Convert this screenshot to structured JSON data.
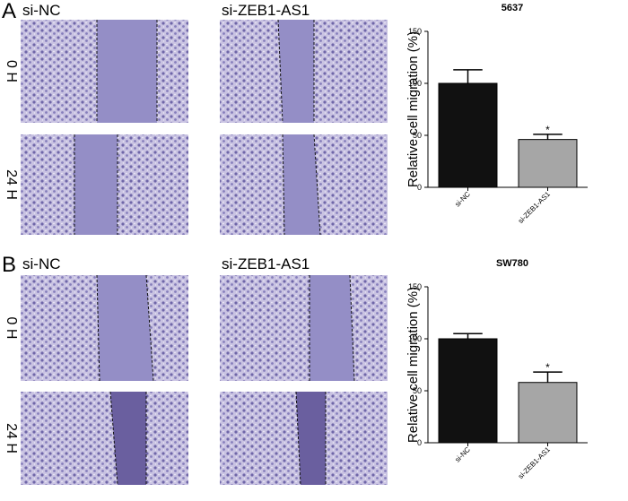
{
  "panels": [
    {
      "label": "A",
      "columns": [
        "si-NC",
        "si-ZEB1-AS1"
      ],
      "rows": [
        "0 H",
        "24 H"
      ]
    },
    {
      "label": "B",
      "columns": [
        "si-NC",
        "si-ZEB1-AS1"
      ],
      "rows": [
        "0 H",
        "24 H"
      ]
    }
  ],
  "chart_data": [
    {
      "type": "bar",
      "title": "5637",
      "ylabel": "Relative cell migration (%)",
      "categories": [
        "si-NC",
        "si-ZEB1-AS1"
      ],
      "values": [
        100,
        46
      ],
      "errors": [
        13,
        5
      ],
      "significance": [
        null,
        "*"
      ],
      "colors": [
        "#111111",
        "#a6a6a6"
      ],
      "ylim": [
        0,
        150
      ],
      "yticks": [
        0,
        50,
        100,
        150
      ]
    },
    {
      "type": "bar",
      "title": "SW780",
      "ylabel": "Relative cell migration (%)",
      "categories": [
        "si-NC",
        "si-ZEB1-AS1"
      ],
      "values": [
        100,
        58
      ],
      "errors": [
        5,
        10
      ],
      "significance": [
        null,
        "*"
      ],
      "colors": [
        "#111111",
        "#a6a6a6"
      ],
      "ylim": [
        0,
        150
      ],
      "yticks": [
        0,
        50,
        100,
        150
      ]
    }
  ]
}
